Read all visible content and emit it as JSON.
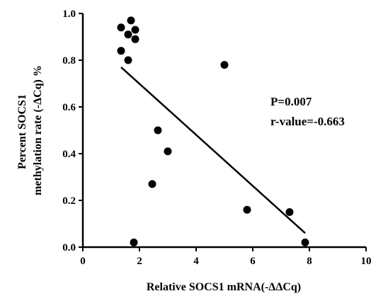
{
  "chart_data": {
    "type": "scatter",
    "xlabel": "Relative SOCS1 mRNA(-ΔΔCq)",
    "ylabel_lines": [
      "Percent  SOCS1",
      "methylation rate (-ΔCq) %"
    ],
    "xlim": [
      0,
      10
    ],
    "ylim": [
      0,
      1.0
    ],
    "xticks": [
      "0",
      "2",
      "4",
      "6",
      "8",
      "10"
    ],
    "yticks": [
      "0.0",
      "0.2",
      "0.4",
      "0.6",
      "0.8",
      "1.0"
    ],
    "grid": false,
    "legend": "none",
    "points": [
      {
        "x": 1.35,
        "y": 0.94
      },
      {
        "x": 1.7,
        "y": 0.97
      },
      {
        "x": 1.6,
        "y": 0.91
      },
      {
        "x": 1.85,
        "y": 0.93
      },
      {
        "x": 1.85,
        "y": 0.89
      },
      {
        "x": 1.35,
        "y": 0.84
      },
      {
        "x": 1.6,
        "y": 0.8
      },
      {
        "x": 5.0,
        "y": 0.78
      },
      {
        "x": 2.65,
        "y": 0.5
      },
      {
        "x": 3.0,
        "y": 0.41
      },
      {
        "x": 2.45,
        "y": 0.27
      },
      {
        "x": 5.8,
        "y": 0.16
      },
      {
        "x": 7.3,
        "y": 0.15
      },
      {
        "x": 7.85,
        "y": 0.02
      },
      {
        "x": 1.8,
        "y": 0.02
      }
    ],
    "trendline": {
      "x": [
        1.35,
        7.85
      ],
      "y": [
        0.77,
        0.06
      ]
    },
    "annotations": [
      "P=0.007",
      "r-value=-0.663"
    ]
  }
}
